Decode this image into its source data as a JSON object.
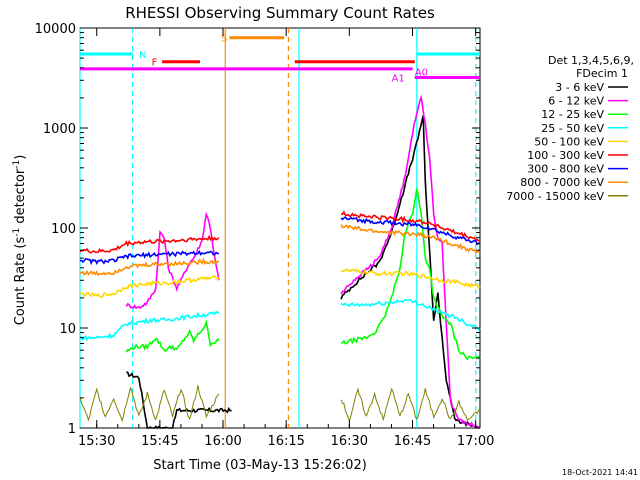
{
  "chart_data": {
    "type": "line",
    "title": "RHESSI Observing Summary Count Rates",
    "xlabel": "Start Time (03-May-13 15:26:02)",
    "ylabel": "Count Rate (s-1 detector-1)",
    "ylabel_base": "Count Rate (s",
    "ylabel_sup1": "-1",
    "ylabel_mid": " detector",
    "ylabel_sup2": "-1",
    "ylabel_end": ")",
    "y_scale": "log",
    "ylim": [
      1,
      10000
    ],
    "xlim_minutes": [
      0,
      95
    ],
    "x_ticks": [
      {
        "label": "15:30",
        "minute": 3.97
      },
      {
        "label": "15:45",
        "minute": 18.97
      },
      {
        "label": "16:00",
        "minute": 33.97
      },
      {
        "label": "16:15",
        "minute": 48.97
      },
      {
        "label": "16:30",
        "minute": 63.97
      },
      {
        "label": "16:45",
        "minute": 78.97
      },
      {
        "label": "17:00",
        "minute": 93.97
      }
    ],
    "y_ticks": [
      {
        "label": "1",
        "value": 1
      },
      {
        "label": "10",
        "value": 10
      },
      {
        "label": "100",
        "value": 100
      },
      {
        "label": "1000",
        "value": 1000
      },
      {
        "label": "10000",
        "value": 10000
      }
    ],
    "legend_header": [
      "Det 1,3,4,5,6,9,",
      "FDecim 1"
    ],
    "series": [
      {
        "name": "3 - 6 keV",
        "color": "#000000",
        "points": [
          [
            11,
            3.5
          ],
          [
            14,
            3.2
          ],
          [
            16,
            1
          ],
          [
            19,
            1
          ],
          [
            20,
            1
          ],
          [
            22,
            1
          ],
          [
            23,
            1.5
          ],
          [
            24,
            1.5
          ],
          [
            27,
            1.5
          ],
          [
            34,
            1.5
          ],
          [
            36,
            1.5
          ]
        ],
        "points2": [
          [
            62,
            20
          ],
          [
            65,
            27
          ],
          [
            68,
            35
          ],
          [
            71,
            45
          ],
          [
            74,
            90
          ],
          [
            77,
            250
          ],
          [
            80,
            700
          ],
          [
            81.5,
            1350
          ],
          [
            82,
            280
          ],
          [
            83,
            60
          ],
          [
            84,
            12
          ],
          [
            85,
            22
          ],
          [
            86,
            8
          ],
          [
            87,
            3
          ],
          [
            88,
            2
          ],
          [
            89,
            1.2
          ],
          [
            95,
            1
          ]
        ]
      },
      {
        "name": "6 - 12 keV",
        "color": "#ff00ff",
        "points": [
          [
            11,
            17
          ],
          [
            14,
            16
          ],
          [
            16,
            18
          ],
          [
            18,
            25
          ],
          [
            19,
            90
          ],
          [
            20,
            80
          ],
          [
            21,
            40
          ],
          [
            23,
            25
          ],
          [
            24,
            30
          ],
          [
            26,
            45
          ],
          [
            27,
            50
          ],
          [
            29,
            75
          ],
          [
            30,
            140
          ],
          [
            31,
            100
          ],
          [
            32,
            50
          ],
          [
            33,
            30
          ]
        ],
        "points2": [
          [
            62,
            22
          ],
          [
            65,
            30
          ],
          [
            68,
            38
          ],
          [
            71,
            50
          ],
          [
            74,
            100
          ],
          [
            77,
            300
          ],
          [
            79,
            900
          ],
          [
            81,
            2100
          ],
          [
            82,
            1100
          ],
          [
            83,
            500
          ],
          [
            84,
            140
          ],
          [
            85,
            80
          ],
          [
            86,
            70
          ],
          [
            88,
            1.8
          ],
          [
            90,
            1.2
          ],
          [
            95,
            1
          ]
        ]
      },
      {
        "name": "12 - 25 keV",
        "color": "#00ff00",
        "points": [
          [
            11,
            5.8
          ],
          [
            13,
            6.5
          ],
          [
            16,
            6.5
          ],
          [
            18,
            8
          ],
          [
            20,
            6
          ],
          [
            22,
            6.5
          ],
          [
            23,
            6
          ],
          [
            25,
            8
          ],
          [
            26,
            9
          ],
          [
            27,
            7.5
          ],
          [
            30,
            11
          ],
          [
            31,
            7
          ],
          [
            33,
            7.5
          ]
        ],
        "points2": [
          [
            62,
            7
          ],
          [
            65,
            7.5
          ],
          [
            68,
            8
          ],
          [
            70,
            9
          ],
          [
            72,
            12
          ],
          [
            74,
            20
          ],
          [
            76,
            40
          ],
          [
            77,
            80
          ],
          [
            78,
            110
          ],
          [
            79,
            140
          ],
          [
            80,
            250
          ],
          [
            81,
            140
          ],
          [
            82,
            50
          ],
          [
            83,
            40
          ],
          [
            84,
            20
          ],
          [
            86,
            13
          ],
          [
            88,
            11
          ],
          [
            90,
            6
          ],
          [
            92,
            5
          ],
          [
            95,
            5
          ]
        ]
      },
      {
        "name": "25 - 50 keV",
        "color": "#00ffff",
        "points": [
          [
            0,
            8
          ],
          [
            4,
            8
          ],
          [
            8,
            8.5
          ],
          [
            11,
            11
          ],
          [
            14,
            11.5
          ],
          [
            17,
            12
          ],
          [
            20,
            12
          ],
          [
            23,
            12.5
          ],
          [
            26,
            13
          ],
          [
            29,
            13.5
          ],
          [
            33,
            14
          ]
        ],
        "points2": [
          [
            62,
            17
          ],
          [
            65,
            17
          ],
          [
            68,
            17
          ],
          [
            71,
            17.5
          ],
          [
            74,
            18
          ],
          [
            77,
            19
          ],
          [
            80,
            18
          ],
          [
            83,
            16
          ],
          [
            86,
            14
          ],
          [
            89,
            13
          ],
          [
            92,
            11
          ],
          [
            95,
            10
          ]
        ]
      },
      {
        "name": "50 - 100 keV",
        "color": "#ffd700",
        "points": [
          [
            0,
            22
          ],
          [
            4,
            21
          ],
          [
            8,
            22
          ],
          [
            11,
            26
          ],
          [
            14,
            27
          ],
          [
            17,
            28
          ],
          [
            20,
            28
          ],
          [
            23,
            29
          ],
          [
            26,
            30
          ],
          [
            29,
            31
          ],
          [
            33,
            32
          ]
        ],
        "points2": [
          [
            62,
            38
          ],
          [
            65,
            37
          ],
          [
            68,
            36
          ],
          [
            71,
            35
          ],
          [
            74,
            35
          ],
          [
            77,
            35
          ],
          [
            80,
            34
          ],
          [
            83,
            32
          ],
          [
            86,
            30
          ],
          [
            89,
            29
          ],
          [
            92,
            27
          ],
          [
            95,
            26
          ]
        ]
      },
      {
        "name": "100 - 300 keV",
        "color": "#ff0000",
        "points": [
          [
            0,
            60
          ],
          [
            4,
            58
          ],
          [
            8,
            60
          ],
          [
            11,
            70
          ],
          [
            14,
            72
          ],
          [
            17,
            73
          ],
          [
            20,
            74
          ],
          [
            23,
            75
          ],
          [
            26,
            77
          ],
          [
            29,
            78
          ],
          [
            33,
            80
          ]
        ],
        "points2": [
          [
            62,
            140
          ],
          [
            65,
            135
          ],
          [
            68,
            130
          ],
          [
            71,
            128
          ],
          [
            74,
            125
          ],
          [
            77,
            122
          ],
          [
            80,
            118
          ],
          [
            83,
            112
          ],
          [
            86,
            100
          ],
          [
            89,
            90
          ],
          [
            92,
            82
          ],
          [
            95,
            75
          ]
        ]
      },
      {
        "name": "300 - 800 keV",
        "color": "#0000ff",
        "points": [
          [
            0,
            48
          ],
          [
            4,
            46
          ],
          [
            8,
            47
          ],
          [
            11,
            52
          ],
          [
            14,
            53
          ],
          [
            17,
            54
          ],
          [
            20,
            55
          ],
          [
            23,
            55
          ],
          [
            26,
            56
          ],
          [
            29,
            57
          ],
          [
            33,
            56
          ]
        ],
        "points2": [
          [
            62,
            125
          ],
          [
            65,
            122
          ],
          [
            68,
            118
          ],
          [
            71,
            115
          ],
          [
            74,
            112
          ],
          [
            77,
            110
          ],
          [
            80,
            107
          ],
          [
            83,
            100
          ],
          [
            86,
            90
          ],
          [
            89,
            82
          ],
          [
            92,
            76
          ],
          [
            95,
            70
          ]
        ]
      },
      {
        "name": "800 - 7000 keV",
        "color": "#ff8c00",
        "points": [
          [
            0,
            36
          ],
          [
            4,
            35
          ],
          [
            8,
            36
          ],
          [
            11,
            41
          ],
          [
            14,
            42
          ],
          [
            17,
            43
          ],
          [
            20,
            44
          ],
          [
            23,
            44
          ],
          [
            26,
            45
          ],
          [
            29,
            46
          ],
          [
            33,
            46
          ]
        ],
        "points2": [
          [
            62,
            105
          ],
          [
            65,
            100
          ],
          [
            68,
            95
          ],
          [
            71,
            92
          ],
          [
            74,
            90
          ],
          [
            77,
            88
          ],
          [
            80,
            86
          ],
          [
            83,
            82
          ],
          [
            86,
            75
          ],
          [
            89,
            68
          ],
          [
            92,
            62
          ],
          [
            95,
            56
          ]
        ]
      },
      {
        "name": "7000 - 15000 keV",
        "color": "#808000",
        "points": [
          [
            0,
            2
          ],
          [
            2,
            1.2
          ],
          [
            4,
            2.4
          ],
          [
            6,
            1.3
          ],
          [
            8,
            2
          ],
          [
            10,
            1.2
          ],
          [
            12,
            2.6
          ],
          [
            14,
            1.3
          ],
          [
            16,
            2.2
          ],
          [
            18,
            1.2
          ],
          [
            20,
            2.4
          ],
          [
            22,
            1.3
          ],
          [
            24,
            2.5
          ],
          [
            26,
            1.2
          ],
          [
            28,
            2.6
          ],
          [
            30,
            1.3
          ],
          [
            33,
            2.2
          ]
        ],
        "points2": [
          [
            62,
            2
          ],
          [
            64,
            1.2
          ],
          [
            66,
            2.4
          ],
          [
            68,
            1.3
          ],
          [
            70,
            2.2
          ],
          [
            72,
            1.2
          ],
          [
            74,
            2.5
          ],
          [
            76,
            1.3
          ],
          [
            78,
            2.2
          ],
          [
            80,
            1.2
          ],
          [
            82,
            2.4
          ],
          [
            84,
            1.3
          ],
          [
            86,
            2
          ],
          [
            88,
            1.2
          ],
          [
            90,
            1.8
          ],
          [
            92,
            1.2
          ],
          [
            95,
            1.5
          ]
        ]
      }
    ],
    "flags": [
      {
        "label": "N",
        "color": "#00ffff",
        "segments": [
          [
            0,
            12.5
          ],
          [
            80,
            95
          ]
        ],
        "value": 5500
      },
      {
        "label": "F",
        "color": "#ff0000",
        "segments": [
          [
            19.5,
            28.5
          ],
          [
            51,
            79.5
          ]
        ],
        "value": 4600
      },
      {
        "label": "S",
        "color": "#ff8c00",
        "segments": [
          [
            35.5,
            48.5
          ]
        ],
        "value": 8000
      },
      {
        "label": "",
        "color": "#ff00ff",
        "segments": [
          [
            0,
            79
          ]
        ],
        "value": 3900
      },
      {
        "label": "A1",
        "color": "#ff00ff",
        "segments": [
          [
            79.5,
            95
          ]
        ],
        "value": 3200
      },
      {
        "label": "A0",
        "color": "#ff00ff",
        "segments": [],
        "value": 3200
      }
    ],
    "verticals": [
      {
        "color": "#00ffff",
        "minute": 0,
        "dashed": false
      },
      {
        "color": "#00ffff",
        "minute": 12.5,
        "dashed": true
      },
      {
        "color": "#ff8c00",
        "minute": 34.5,
        "dashed": false
      },
      {
        "color": "#ff8c00",
        "minute": 49.5,
        "dashed": true
      },
      {
        "color": "#00ffff",
        "minute": 52,
        "dashed": false
      },
      {
        "color": "#00ffff",
        "minute": 80,
        "dashed": false
      },
      {
        "color": "#00ffff",
        "minute": 94,
        "dashed": true
      }
    ],
    "gaps_minutes": [
      [
        34.5,
        51
      ]
    ]
  },
  "footer_timestamp": "18-Oct-2021 14:41"
}
